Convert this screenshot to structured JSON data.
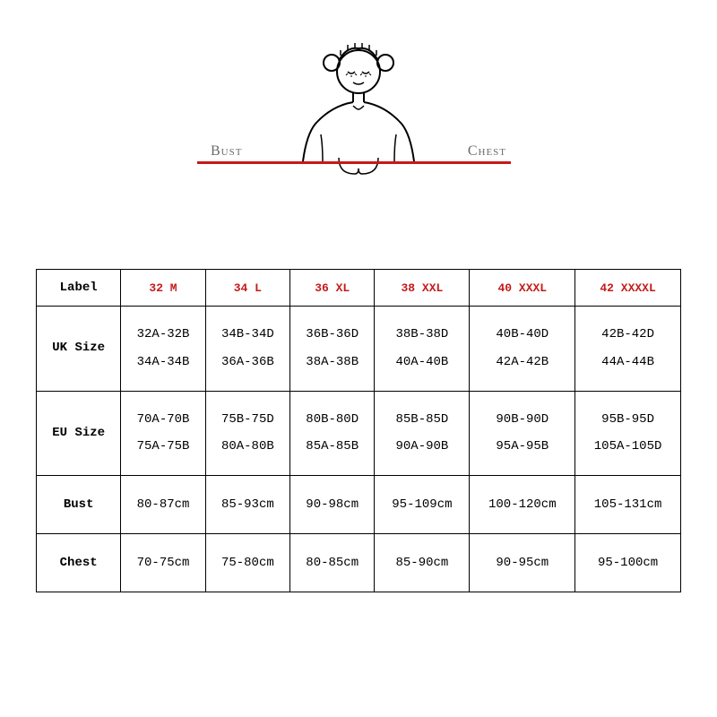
{
  "diagram": {
    "bust_label": "Bust",
    "chest_label": "Chest",
    "line_color": "#c51a1a",
    "label_color": "#6b6b6b",
    "stroke_color": "#000000"
  },
  "table": {
    "header_color": "#c51a1a",
    "border_color": "#000000",
    "text_color": "#000000",
    "font_family": "Courier New",
    "font_size_pt": 11,
    "label_header": "Label",
    "size_headers": [
      "32 M",
      "34 L",
      "36 XL",
      "38 XXL",
      "40 XXXL",
      "42 XXXXL"
    ],
    "rows": [
      {
        "label": "UK Size",
        "type": "double",
        "cells": [
          [
            "32A-32B",
            "34A-34B"
          ],
          [
            "34B-34D",
            "36A-36B"
          ],
          [
            "36B-36D",
            "38A-38B"
          ],
          [
            "38B-38D",
            "40A-40B"
          ],
          [
            "40B-40D",
            "42A-42B"
          ],
          [
            "42B-42D",
            "44A-44B"
          ]
        ]
      },
      {
        "label": "EU Size",
        "type": "double",
        "cells": [
          [
            "70A-70B",
            "75A-75B"
          ],
          [
            "75B-75D",
            "80A-80B"
          ],
          [
            "80B-80D",
            "85A-85B"
          ],
          [
            "85B-85D",
            "90A-90B"
          ],
          [
            "90B-90D",
            "95A-95B"
          ],
          [
            "95B-95D",
            "105A-105D"
          ]
        ]
      },
      {
        "label": "Bust",
        "type": "single",
        "cells": [
          [
            "80-87cm"
          ],
          [
            "85-93cm"
          ],
          [
            "90-98cm"
          ],
          [
            "95-109cm"
          ],
          [
            "100-120cm"
          ],
          [
            "105-131cm"
          ]
        ]
      },
      {
        "label": "Chest",
        "type": "single",
        "cells": [
          [
            "70-75cm"
          ],
          [
            "75-80cm"
          ],
          [
            "80-85cm"
          ],
          [
            "85-90cm"
          ],
          [
            "90-95cm"
          ],
          [
            "95-100cm"
          ]
        ]
      }
    ]
  }
}
